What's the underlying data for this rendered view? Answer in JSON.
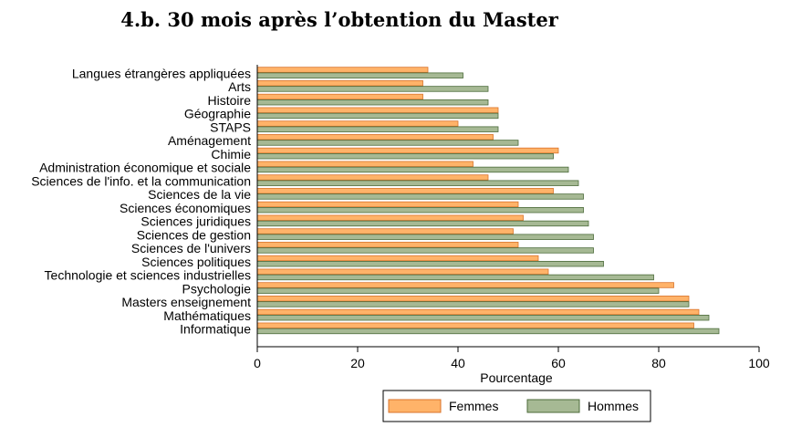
{
  "chart_data": {
    "type": "bar",
    "orientation": "horizontal",
    "title": "4.b. 30 mois après l’obtention du Master",
    "xlabel": "Pourcentage",
    "xlim": [
      0,
      100
    ],
    "xticks": [
      "0",
      "20",
      "40",
      "60",
      "80",
      "100"
    ],
    "legend_position": "bottom",
    "categories": [
      "Langues étrangères appliquées",
      "Arts",
      "Histoire",
      "Géographie",
      "STAPS",
      "Aménagement",
      "Chimie",
      "Administration économique et sociale",
      "Sciences de l'info. et la communication",
      "Sciences de la vie",
      "Sciences économiques",
      "Sciences juridiques",
      "Sciences de gestion",
      "Sciences de l'univers",
      "Sciences politiques",
      "Technologie et sciences industrielles",
      "Psychologie",
      "Masters enseignement",
      "Mathématiques",
      "Informatique"
    ],
    "series": [
      {
        "name": "Femmes",
        "color": "#ffb369",
        "stroke": "#d9732a",
        "values": [
          34,
          33,
          33,
          48,
          40,
          47,
          60,
          43,
          46,
          59,
          52,
          53,
          51,
          52,
          56,
          58,
          83,
          86,
          88,
          87
        ]
      },
      {
        "name": "Hommes",
        "color": "#a6b994",
        "stroke": "#4c6b3a",
        "values": [
          41,
          46,
          46,
          48,
          48,
          52,
          59,
          62,
          64,
          65,
          65,
          66,
          67,
          67,
          69,
          79,
          80,
          86,
          90,
          92
        ]
      }
    ]
  }
}
